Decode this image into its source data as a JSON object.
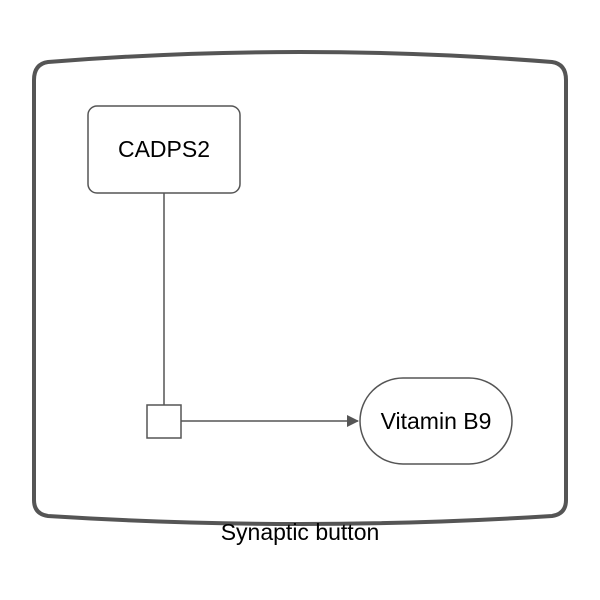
{
  "diagram": {
    "compartment": {
      "label": "Synaptic button"
    },
    "nodes": {
      "cadps2": {
        "label": "CADPS2",
        "shape": "rounded-rectangle"
      },
      "vitamin_b9": {
        "label": "Vitamin B9",
        "shape": "stadium"
      },
      "process": {
        "shape": "square"
      }
    },
    "edges": [
      {
        "from": "cadps2",
        "to": "process",
        "arrow": "none"
      },
      {
        "from": "process",
        "to": "vitamin_b9",
        "arrow": "filled-triangle"
      }
    ],
    "colors": {
      "stroke": "#555555",
      "compartment_stroke": "#555555",
      "fill": "#ffffff",
      "text": "#000000"
    }
  }
}
